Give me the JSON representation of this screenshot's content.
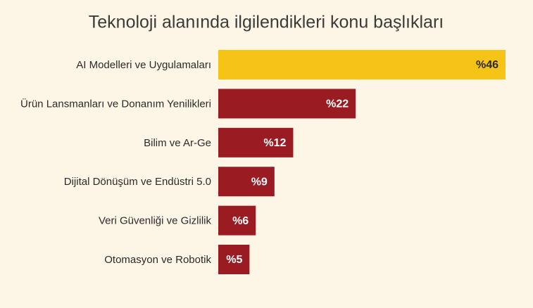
{
  "chart_data": {
    "type": "bar",
    "orientation": "horizontal",
    "title": "Teknoloji alanında ilgilendikleri konu başlıkları",
    "categories": [
      "AI Modelleri ve Uygulamaları",
      "Ürün Lansmanları ve Donanım Yenilikleri",
      "Bilim ve Ar-Ge",
      "Dijital Dönüşüm ve Endüstri 5.0",
      "Veri Güvenliği ve Gizlilik",
      "Otomasyon ve Robotik"
    ],
    "values": [
      46,
      22,
      12,
      9,
      6,
      5
    ],
    "value_labels": [
      "%46",
      "%22",
      "%12",
      "%9",
      "%6",
      "%5"
    ],
    "colors": [
      "#f6c416",
      "#9a1c22",
      "#9a1c22",
      "#9a1c22",
      "#9a1c22",
      "#9a1c22"
    ],
    "label_colors": [
      "#2b2b2b",
      "#ffffff",
      "#ffffff",
      "#ffffff",
      "#ffffff",
      "#ffffff"
    ]
  }
}
